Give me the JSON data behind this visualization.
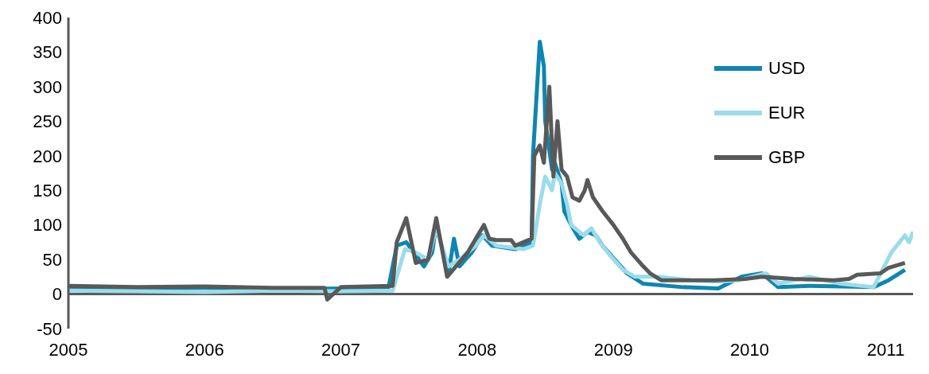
{
  "chart_data": {
    "type": "line",
    "ylim": [
      -50,
      400
    ],
    "yticks": [
      -50,
      0,
      50,
      100,
      150,
      200,
      250,
      300,
      350,
      400
    ],
    "xlim": [
      2005,
      2011.2
    ],
    "xticks": [
      2005,
      2006,
      2007,
      2008,
      2009,
      2010,
      2011
    ],
    "legend": "top right",
    "grid": false,
    "marker": "none",
    "line_style": "solid",
    "series": [
      {
        "name": "USD",
        "color": "#0e86b0",
        "x": [
          2005,
          2005.5,
          2006,
          2006.5,
          2007,
          2007.35,
          2007.41,
          2007.48,
          2007.61,
          2007.67,
          2007.7,
          2007.79,
          2007.83,
          2007.87,
          2007.96,
          2008.04,
          2008.11,
          2008.28,
          2008.4,
          2008.41,
          2008.46,
          2008.49,
          2008.5,
          2008.55,
          2008.57,
          2008.62,
          2008.64,
          2008.69,
          2008.75,
          2008.81,
          2008.87,
          2008.92,
          2009.01,
          2009.1,
          2009.22,
          2009.51,
          2009.77,
          2009.94,
          2010.09,
          2010.21,
          2010.44,
          2010.91,
          2011.02,
          2011.14
        ],
        "values": [
          10,
          8,
          9,
          7,
          8,
          10,
          70,
          75,
          40,
          60,
          100,
          30,
          80,
          40,
          60,
          85,
          70,
          65,
          75,
          200,
          365,
          330,
          250,
          180,
          190,
          160,
          120,
          100,
          80,
          90,
          85,
          70,
          50,
          30,
          15,
          10,
          8,
          25,
          30,
          10,
          12,
          10,
          20,
          35
        ]
      },
      {
        "name": "EUR",
        "color": "#9adcea",
        "x": [
          2005,
          2005.5,
          2006,
          2006.5,
          2007,
          2007.38,
          2007.47,
          2007.55,
          2007.64,
          2007.7,
          2007.79,
          2007.87,
          2007.99,
          2008.05,
          2008.14,
          2008.34,
          2008.41,
          2008.46,
          2008.5,
          2008.55,
          2008.57,
          2008.62,
          2008.66,
          2008.69,
          2008.78,
          2008.84,
          2008.9,
          2008.98,
          2009.07,
          2009.16,
          2009.33,
          2009.57,
          2009.77,
          2009.92,
          2010.12,
          2010.21,
          2010.44,
          2010.67,
          2010.91,
          2011.04,
          2011.14,
          2011.17,
          2011.2
        ],
        "values": [
          5,
          4,
          3,
          5,
          4,
          5,
          65,
          60,
          50,
          95,
          40,
          50,
          70,
          85,
          70,
          65,
          70,
          130,
          170,
          150,
          175,
          160,
          130,
          100,
          85,
          95,
          75,
          55,
          35,
          25,
          25,
          20,
          18,
          20,
          30,
          15,
          25,
          15,
          10,
          60,
          85,
          75,
          90
        ]
      },
      {
        "name": "GBP",
        "color": "#595959",
        "x": [
          2005,
          2005.5,
          2006,
          2006.5,
          2006.88,
          2006.9,
          2007,
          2007.38,
          2007.41,
          2007.48,
          2007.55,
          2007.64,
          2007.7,
          2007.78,
          2007.93,
          2008.02,
          2008.05,
          2008.09,
          2008.14,
          2008.25,
          2008.28,
          2008.34,
          2008.4,
          2008.42,
          2008.46,
          2008.49,
          2008.53,
          2008.56,
          2008.57,
          2008.59,
          2008.62,
          2008.66,
          2008.7,
          2008.75,
          2008.79,
          2008.81,
          2008.85,
          2008.92,
          2009.0,
          2009.07,
          2009.13,
          2009.22,
          2009.27,
          2009.35,
          2009.74,
          2009.97,
          2010.09,
          2010.32,
          2010.62,
          2010.73,
          2010.79,
          2010.96,
          2011.02,
          2011.14
        ],
        "values": [
          12,
          10,
          11,
          9,
          9,
          -8,
          10,
          12,
          75,
          110,
          45,
          50,
          110,
          25,
          60,
          90,
          100,
          80,
          78,
          78,
          70,
          75,
          80,
          200,
          215,
          190,
          300,
          170,
          200,
          250,
          180,
          170,
          140,
          135,
          150,
          165,
          140,
          120,
          100,
          80,
          60,
          40,
          30,
          20,
          20,
          22,
          25,
          22,
          20,
          22,
          28,
          30,
          38,
          45
        ]
      }
    ]
  }
}
